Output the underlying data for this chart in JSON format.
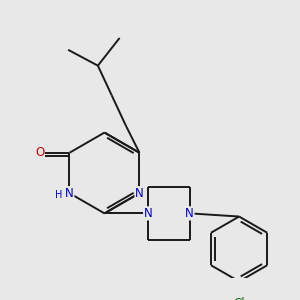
{
  "bg_color": "#e8e8e8",
  "bond_color": "#1a1a1a",
  "bond_width": 1.4,
  "atom_colors": {
    "N": "#0000cc",
    "O": "#cc0000",
    "Cl": "#007700",
    "C": "#1a1a1a"
  },
  "font_size_atom": 8.5
}
